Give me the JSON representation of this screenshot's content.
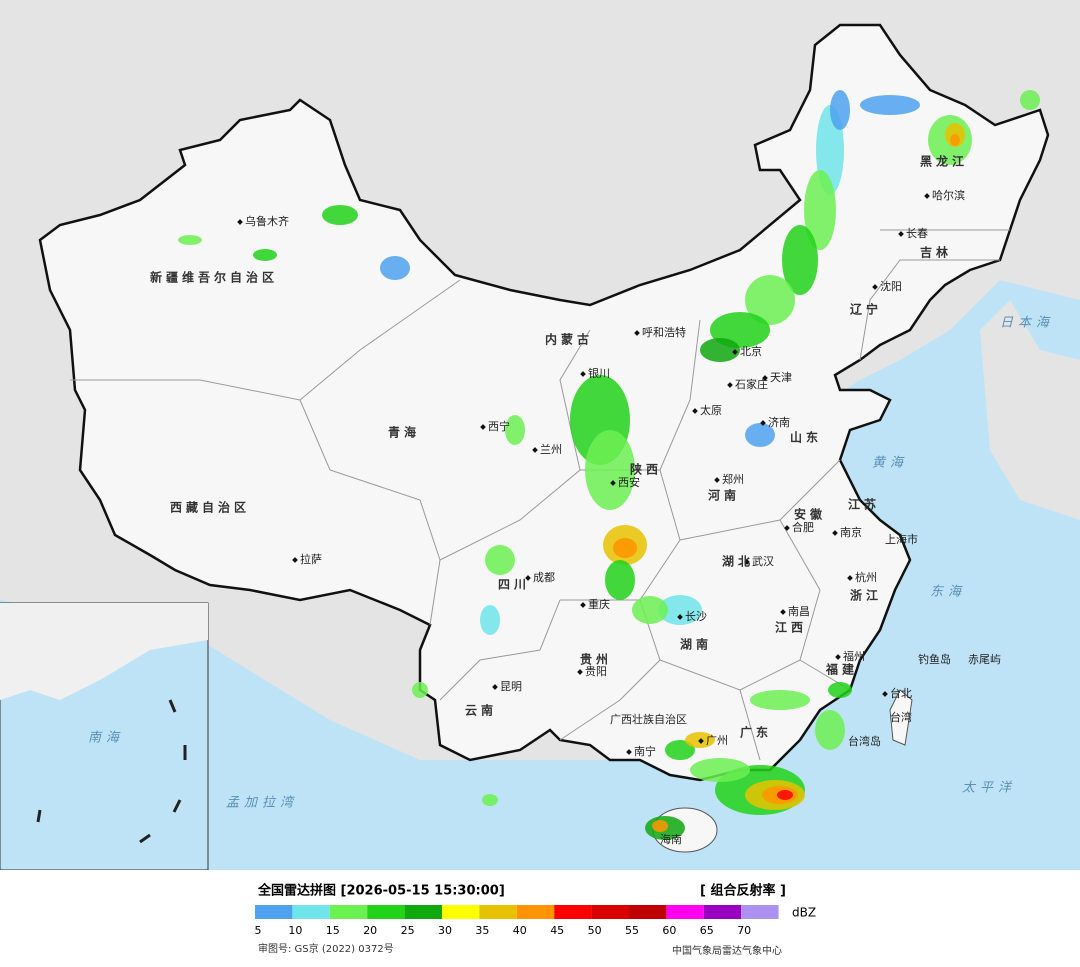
{
  "header": {
    "title": "全国雷达拼图 [2026-05-15 15:30:00]",
    "product": "[ 组合反射率 ]"
  },
  "legend": {
    "unit": "dBZ",
    "levels": [
      {
        "value": 5,
        "color": "#4ea2ee"
      },
      {
        "value": 10,
        "color": "#70e4ea"
      },
      {
        "value": 15,
        "color": "#6cf052"
      },
      {
        "value": 20,
        "color": "#22d21a"
      },
      {
        "value": 25,
        "color": "#0fa80f"
      },
      {
        "value": 30,
        "color": "#ffff00"
      },
      {
        "value": 35,
        "color": "#e8c200"
      },
      {
        "value": 40,
        "color": "#ff9400"
      },
      {
        "value": 45,
        "color": "#ff0000"
      },
      {
        "value": 50,
        "color": "#da0000"
      },
      {
        "value": 55,
        "color": "#c00000"
      },
      {
        "value": 60,
        "color": "#ff00f0"
      },
      {
        "value": 65,
        "color": "#9a00c0"
      },
      {
        "value": 70,
        "color": "#ae90f0"
      }
    ]
  },
  "footer": {
    "approval": "审图号: GS京 (2022) 0372号",
    "source": "中国气象局雷达气象中心"
  },
  "map": {
    "labels": [
      "乌鲁木齐",
      "新疆维吾尔自治区",
      "西藏自治区",
      "拉萨",
      "青海",
      "西宁",
      "兰州",
      "内蒙古",
      "呼和浩特",
      "北京",
      "天津",
      "石家庄",
      "太原",
      "济南",
      "郑州",
      "西安",
      "银川",
      "成都",
      "重庆",
      "贵阳",
      "昆明",
      "南宁",
      "广州",
      "长沙",
      "武汉",
      "合肥",
      "南京",
      "上海市",
      "杭州",
      "福州",
      "南昌",
      "长春",
      "沈阳",
      "哈尔滨",
      "台北",
      "黑龙江",
      "吉林",
      "辽宁",
      "山东",
      "河南",
      "陕西",
      "四川",
      "湖北",
      "湖南",
      "江西",
      "安徽",
      "江苏",
      "浙江",
      "福建",
      "广东",
      "广西壮族自治区",
      "贵州",
      "云南",
      "台湾",
      "海南",
      "钓鱼岛",
      "赤尾屿",
      "台湾岛",
      "日本海",
      "黄海",
      "东海",
      "太平洋",
      "孟加拉湾",
      "南海"
    ]
  }
}
